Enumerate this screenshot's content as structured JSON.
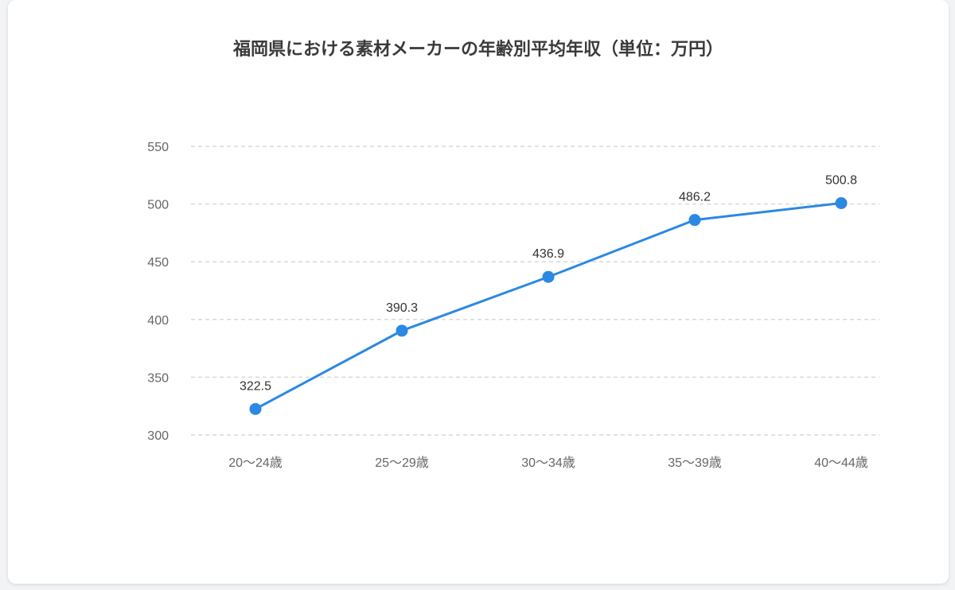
{
  "chart_data": {
    "type": "line",
    "title": "福岡県における素材メーカーの年齢別平均年収（単位：万円）",
    "categories": [
      "20〜24歳",
      "25〜29歳",
      "30〜34歳",
      "35〜39歳",
      "40〜44歳"
    ],
    "series": [
      {
        "values": [
          322.5,
          390.3,
          436.9,
          486.2,
          500.8
        ],
        "color": "#2b88e3"
      }
    ],
    "ylim": [
      300,
      550
    ],
    "yticks": [
      300,
      350,
      400,
      450,
      500,
      550
    ],
    "grid": true,
    "gridColor": "#d9d9d9"
  }
}
